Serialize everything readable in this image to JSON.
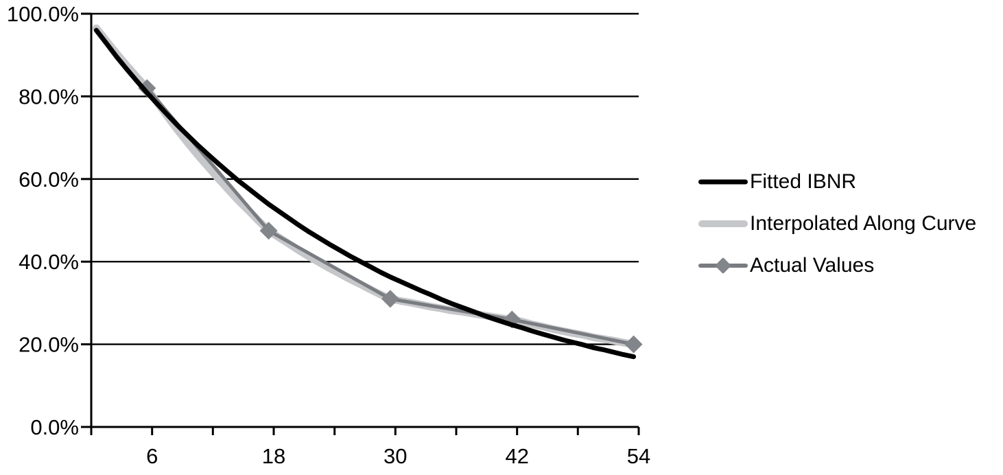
{
  "chart_data": {
    "type": "line",
    "title": "",
    "xlabel": "",
    "ylabel": "",
    "background": "#ffffff",
    "x_axis": {
      "range": [
        0,
        54
      ],
      "minor_tick_step": 6,
      "labeled_ticks": [
        6,
        18,
        30,
        42,
        54
      ],
      "tick_labels": [
        "6",
        "18",
        "30",
        "42",
        "54"
      ]
    },
    "y_axis": {
      "range": [
        0,
        100
      ],
      "tick_values": [
        0,
        20,
        40,
        60,
        80,
        100
      ],
      "tick_labels": [
        "0.0%",
        "20.0%",
        "40.0%",
        "60.0%",
        "80.0%",
        "100.0%"
      ],
      "gridlines": true,
      "format": "percent"
    },
    "legend": {
      "position": "right"
    },
    "series": [
      {
        "name": "Fitted IBNR",
        "slug": "fitted-ibnr",
        "type": "line",
        "color": "#000000",
        "stroke_width": 7,
        "z": 3,
        "x": [
          1,
          2,
          3,
          4,
          5,
          6,
          7,
          8,
          9,
          10,
          11,
          12,
          13,
          14,
          15,
          16,
          17,
          18,
          19,
          20,
          21,
          22,
          23,
          24,
          25,
          26,
          27,
          28,
          29,
          30,
          31,
          32,
          33,
          34,
          35,
          36,
          37,
          38,
          39,
          40,
          41,
          42,
          43,
          44,
          45,
          46,
          47,
          48,
          49,
          50,
          51,
          52,
          53,
          54
        ],
        "values": [
          96.0,
          92.8,
          89.6,
          86.6,
          83.7,
          80.9,
          78.2,
          75.6,
          73.0,
          70.6,
          68.2,
          66.0,
          63.8,
          61.7,
          59.6,
          57.7,
          55.8,
          53.9,
          52.2,
          50.5,
          48.8,
          47.2,
          45.7,
          44.2,
          42.8,
          41.4,
          40.1,
          38.8,
          37.5,
          36.3,
          35.2,
          34.1,
          33.0,
          32.0,
          30.9,
          29.9,
          29.0,
          28.1,
          27.2,
          26.3,
          25.5,
          24.7,
          24.0,
          23.2,
          22.5,
          21.8,
          21.1,
          20.5,
          19.9,
          19.2,
          18.7,
          18.1,
          17.5,
          17.0
        ]
      },
      {
        "name": "Interpolated Along Curve",
        "slug": "interpolated-along-curve",
        "type": "line",
        "color": "#c5c7ca",
        "stroke_width": 11,
        "z": 1,
        "x": [
          1,
          2,
          3,
          4,
          5,
          6,
          7,
          8,
          9,
          10,
          11,
          12,
          13,
          14,
          15,
          16,
          17,
          18,
          19,
          20,
          21,
          22,
          23,
          24,
          25,
          26,
          27,
          28,
          29,
          30,
          31,
          32,
          33,
          34,
          35,
          36,
          37,
          38,
          39,
          40,
          41,
          42,
          43,
          44,
          45,
          46,
          47,
          48,
          49,
          50,
          51,
          52,
          53,
          54
        ],
        "values": [
          96.5,
          93.4,
          90.4,
          87.5,
          84.7,
          82.0,
          78.5,
          75.2,
          71.9,
          68.8,
          65.8,
          63.0,
          60.2,
          57.5,
          54.8,
          52.4,
          49.9,
          47.5,
          45.9,
          44.3,
          42.7,
          41.2,
          39.8,
          38.4,
          37.1,
          35.8,
          34.6,
          33.3,
          32.1,
          31.0,
          30.5,
          30.1,
          29.6,
          29.1,
          28.7,
          28.2,
          27.9,
          27.5,
          27.1,
          26.7,
          26.3,
          26.0,
          25.5,
          24.8,
          24.3,
          23.7,
          23.2,
          22.7,
          22.3,
          21.7,
          21.3,
          20.9,
          20.4,
          20.0
        ]
      },
      {
        "name": "Actual Values",
        "slug": "actual-values",
        "type": "line",
        "marker": "diamond",
        "color": "#797c80",
        "marker_color": "#82858a",
        "stroke_width": 5,
        "z": 2,
        "x": [
          6,
          18,
          30,
          42,
          54
        ],
        "values": [
          82,
          47.5,
          31,
          26,
          20
        ]
      }
    ]
  }
}
